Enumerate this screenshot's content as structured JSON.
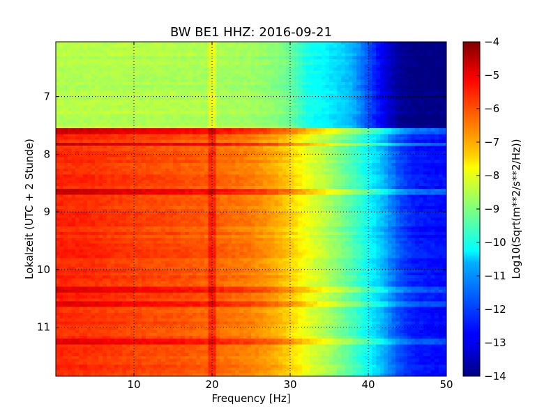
{
  "chart_data": {
    "type": "heatmap",
    "title": "BW BE1 HHZ: 2016-09-21",
    "xlabel": "Frequency [Hz]",
    "ylabel": "Lokalzeit (UTC + 2 Stunde)",
    "colorbar_label": "Log10(Sqrt(m**2/s**2/Hz))",
    "xlim": [
      0,
      50
    ],
    "ylim": [
      11.85,
      6.05
    ],
    "y_inverted": true,
    "x_ticks": [
      10,
      20,
      30,
      40,
      50
    ],
    "x_tick_labels": [
      "10",
      "20",
      "30",
      "40",
      "50"
    ],
    "y_ticks": [
      7,
      8,
      9,
      10,
      11
    ],
    "y_tick_labels": [
      "7",
      "8",
      "9",
      "10",
      "11"
    ],
    "clim": [
      -14,
      -4
    ],
    "colorbar_ticks": [
      -4,
      -5,
      -6,
      -7,
      -8,
      -9,
      -10,
      -11,
      -12,
      -13,
      -14
    ],
    "colorbar_tick_labels": [
      "−4",
      "−5",
      "−6",
      "−7",
      "−8",
      "−9",
      "−10",
      "−11",
      "−12",
      "−13",
      "−14"
    ],
    "colormap": "jet",
    "grid": true,
    "spectrum_profile": {
      "frequency_hz": [
        0,
        5,
        10,
        15,
        20,
        25,
        28,
        30,
        32,
        35,
        38,
        40,
        42,
        44,
        46,
        50
      ],
      "psd_before_7_55": [
        -8.5,
        -8.5,
        -8.5,
        -8.55,
        -8.6,
        -8.7,
        -8.9,
        -9.2,
        -10.0,
        -10.4,
        -11.0,
        -12.0,
        -13.0,
        -13.8,
        -14.0,
        -14.0
      ],
      "psd_after_7_55": [
        -5.6,
        -5.7,
        -5.9,
        -6.0,
        -6.2,
        -6.5,
        -6.9,
        -7.3,
        -7.9,
        -8.6,
        -9.5,
        -10.2,
        -11.0,
        -12.0,
        -12.5,
        -12.7
      ]
    },
    "regime_change_time": 7.55,
    "notable_lines": [
      {
        "frequency_hz": 20,
        "description": "narrow spectral line"
      }
    ],
    "strong_bands_time": [
      7.6,
      7.82,
      8.65,
      10.33,
      10.58,
      11.25
    ]
  }
}
